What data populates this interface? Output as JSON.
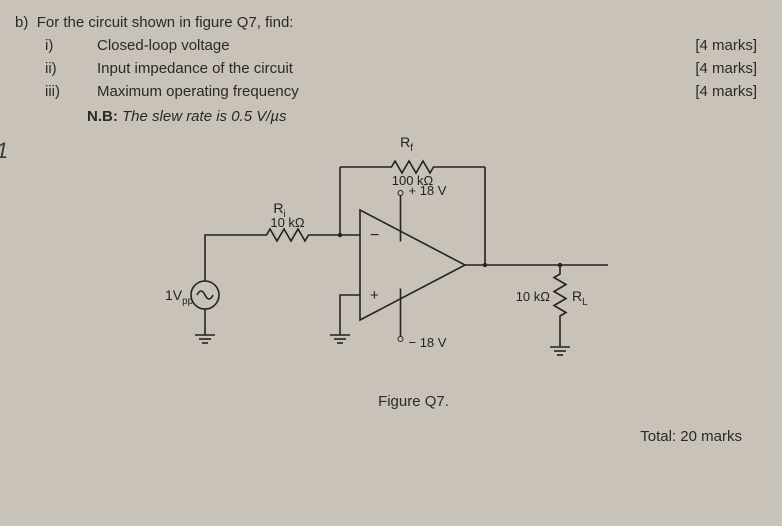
{
  "question": {
    "prefix": "b)",
    "prompt": "For the circuit shown in figure Q7, find:",
    "items": [
      {
        "label": "i)",
        "text": "Closed-loop voltage",
        "marks": "[4 marks]"
      },
      {
        "label": "ii)",
        "text": "Input impedance of the circuit",
        "marks": "[4 marks]"
      },
      {
        "label": "iii)",
        "text": "Maximum operating frequency",
        "marks": "[4 marks]"
      }
    ],
    "nb_prefix": "N.B:",
    "nb_text": "The slew rate is 0.5 V/µs"
  },
  "circuit": {
    "type": "diagram",
    "components": {
      "Rf": {
        "name": "R",
        "sub": "f",
        "value": "100 kΩ"
      },
      "Ri": {
        "name": "R",
        "sub": "i",
        "value": "10 kΩ"
      },
      "RL": {
        "name": "R",
        "sub": "L",
        "value": "10 kΩ"
      },
      "source": {
        "label": "1V",
        "sub": "pp"
      },
      "vplus": "+ 18 V",
      "vminus": "− 18 V",
      "opamp": {
        "neg": "−",
        "pos": "+"
      }
    },
    "style": {
      "stroke": "#232323",
      "stroke_width": 1.6,
      "text_color": "#232323",
      "label_fontsize": 14,
      "value_fontsize": 14
    }
  },
  "figure_caption": "Figure Q7.",
  "total": "Total: 20 marks",
  "edge_mark": "1"
}
